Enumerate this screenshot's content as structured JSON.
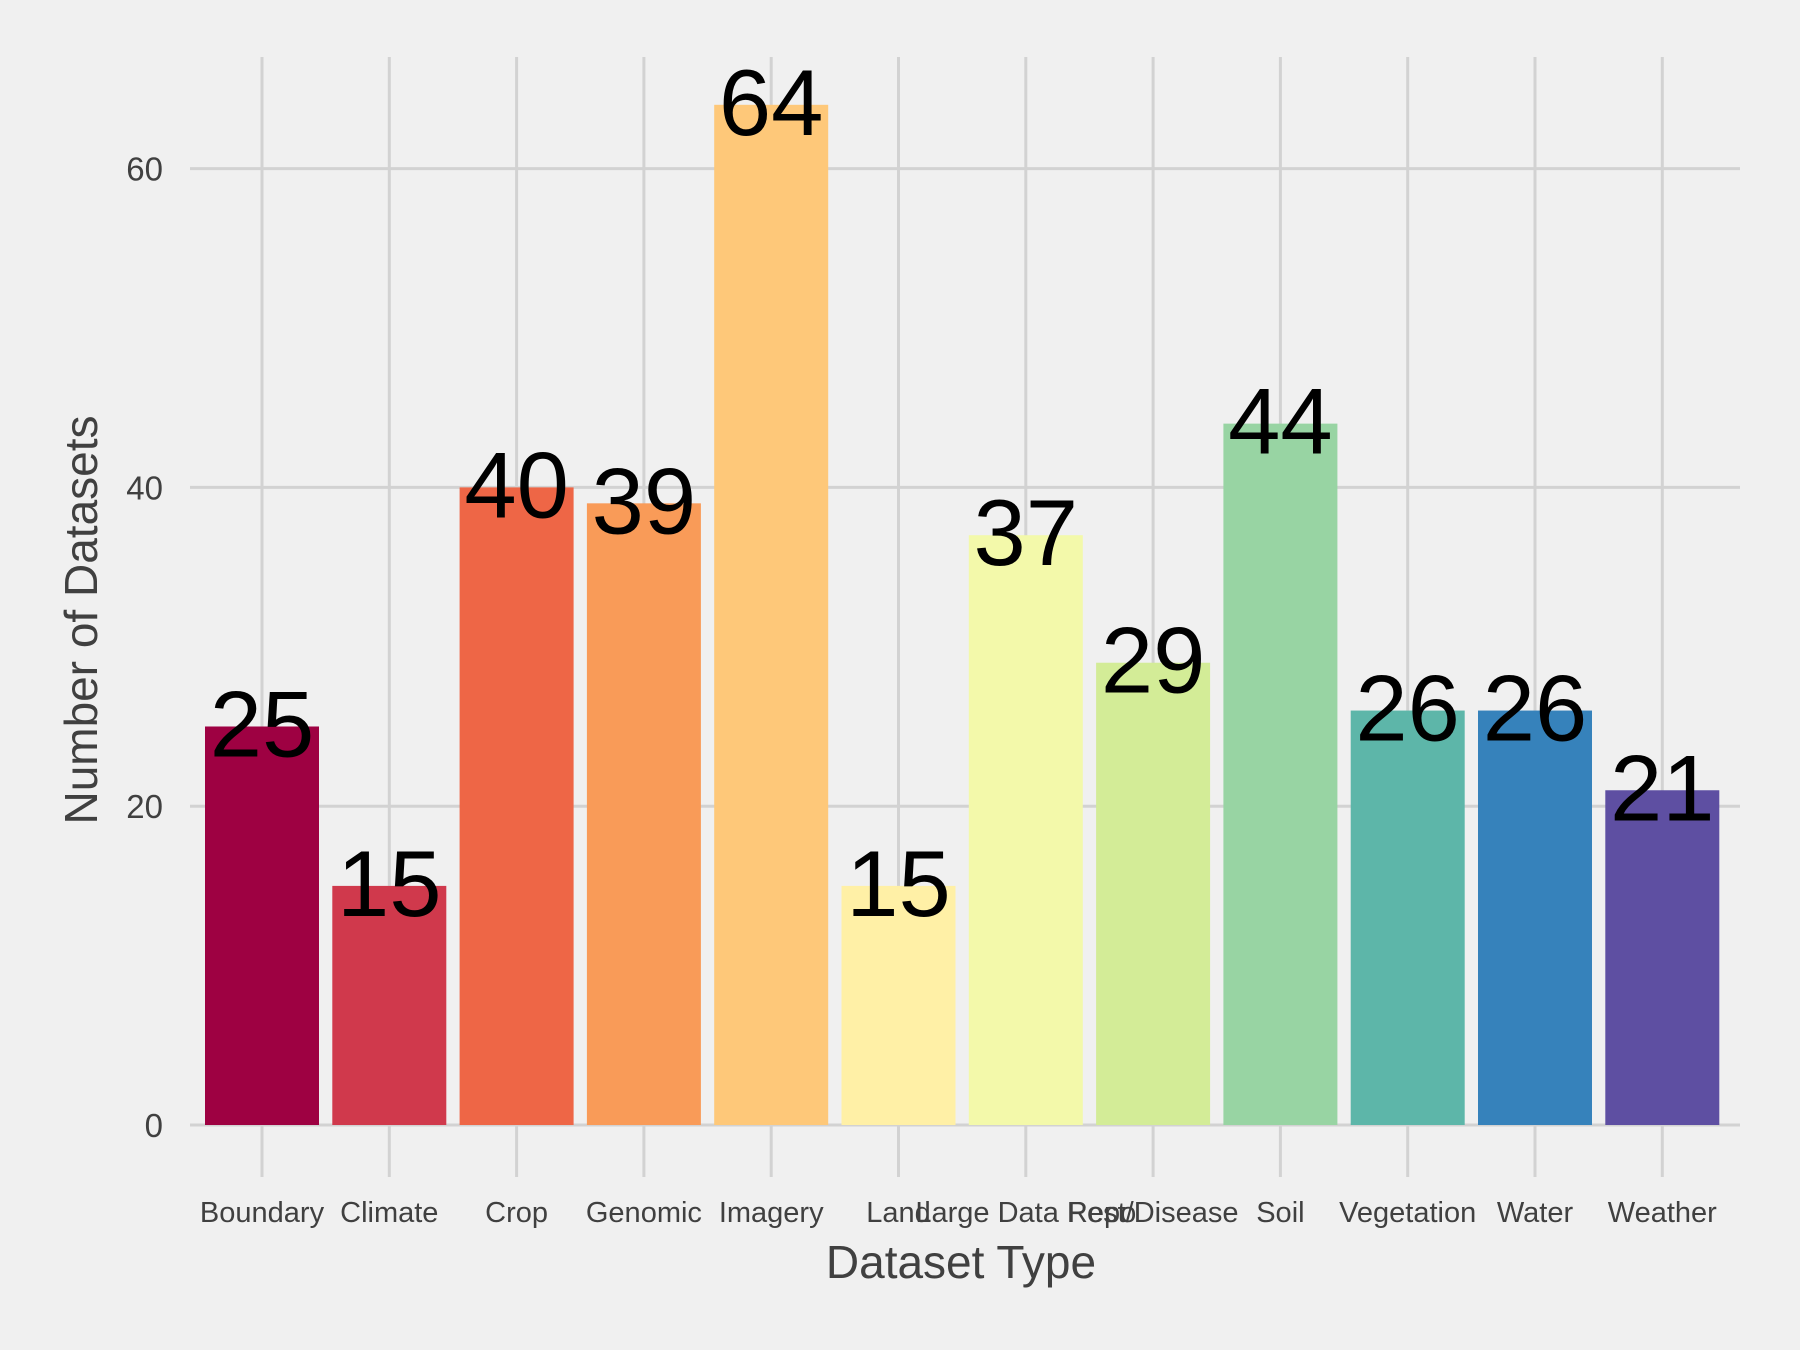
{
  "chart_data": {
    "type": "bar",
    "title": "",
    "xlabel": "Dataset Type",
    "ylabel": "Number of Datasets",
    "categories": [
      "Boundary",
      "Climate",
      "Crop",
      "Genomic",
      "Imagery",
      "Land",
      "Large Data Repo",
      "Pest/Disease",
      "Soil",
      "Vegetation",
      "Water",
      "Weather"
    ],
    "values": [
      25,
      15,
      40,
      39,
      64,
      15,
      37,
      29,
      44,
      26,
      26,
      21
    ],
    "ylim": [
      0,
      67
    ],
    "yticks": [
      0,
      20,
      40,
      60
    ],
    "grid": true,
    "legend": "none",
    "colors": [
      "#9e0142",
      "#d53e4f",
      "#f46d43",
      "#fdae61",
      "#fee08b",
      "#ffffbf",
      "#e6f598",
      "#abdda4",
      "#66c2a5",
      "#3288bd",
      "#5e4fa2",
      "#5e4fa2"
    ],
    "bar_colors": [
      "#9e0142",
      "#d0394c",
      "#ee6646",
      "#f99b58",
      "#fec879",
      "#fff0a6",
      "#f3f9aa",
      "#d3ec97",
      "#98d4a3",
      "#5db6a9",
      "#3682bb",
      "#5e4fa2"
    ]
  }
}
